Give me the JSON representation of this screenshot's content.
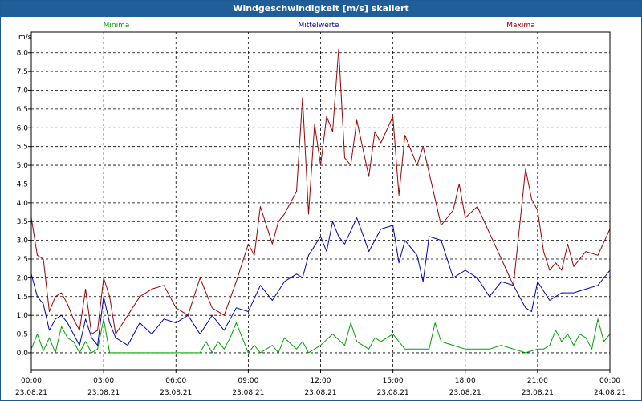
{
  "window": {
    "title": "Windgeschwindigkeit [m/s] skaliert"
  },
  "chart_data": {
    "type": "line",
    "title": "Windgeschwindigkeit [m/s] skaliert",
    "ylabel": "m/s",
    "xlabel": "",
    "ylim": [
      -0.45,
      8.55
    ],
    "y_ticks": [
      "0,0",
      "0,5",
      "1,0",
      "1,5",
      "2,0",
      "2,5",
      "3,0",
      "3,5",
      "4,0",
      "4,5",
      "5,0",
      "5,5",
      "6,0",
      "6,5",
      "7,0",
      "7,5",
      "8,0"
    ],
    "x_range_hours": [
      0,
      24
    ],
    "x_ticks": [
      {
        "time": "00:00",
        "date": "23.08.21"
      },
      {
        "time": "03:00",
        "date": "23.08.21"
      },
      {
        "time": "06:00",
        "date": "23.08.21"
      },
      {
        "time": "09:00",
        "date": "23.08.21"
      },
      {
        "time": "12:00",
        "date": "23.08.21"
      },
      {
        "time": "15:00",
        "date": "23.08.21"
      },
      {
        "time": "18:00",
        "date": "23.08.21"
      },
      {
        "time": "21:00",
        "date": "23.08.21"
      },
      {
        "time": "00:00",
        "date": "24.08.21"
      }
    ],
    "grid": true,
    "legend_position": "top",
    "series": [
      {
        "name": "Minima",
        "color": "#00a000",
        "x": [
          0,
          0.25,
          0.5,
          0.75,
          1,
          1.25,
          1.5,
          1.75,
          2,
          2.25,
          2.5,
          2.75,
          3,
          3.25,
          3.5,
          4,
          4.5,
          5,
          5.5,
          6,
          6.5,
          7,
          7.25,
          7.5,
          7.75,
          8,
          8.25,
          8.5,
          9,
          9.25,
          9.5,
          10,
          10.25,
          10.5,
          11,
          11.25,
          11.5,
          12,
          12.5,
          13,
          13.25,
          13.5,
          14,
          14.25,
          14.5,
          15,
          15.5,
          16,
          16.5,
          16.75,
          17,
          17.5,
          18,
          18.5,
          19,
          19.5,
          20,
          20.5,
          21,
          21.25,
          21.5,
          21.75,
          22,
          22.25,
          22.5,
          22.75,
          23,
          23.25,
          23.5,
          23.75,
          24
        ],
        "y": [
          0.1,
          0.5,
          0.05,
          0.4,
          0.0,
          0.7,
          0.4,
          0.3,
          0.0,
          0.3,
          0.0,
          0.1,
          0.9,
          0.0,
          0.0,
          0.0,
          0.0,
          0.0,
          0.0,
          0.0,
          0.0,
          0.0,
          0.3,
          0.0,
          0.3,
          0.1,
          0.4,
          0.8,
          0.0,
          0.2,
          0.0,
          0.2,
          0.0,
          0.4,
          0.1,
          0.3,
          0.0,
          0.2,
          0.5,
          0.2,
          0.8,
          0.3,
          0.1,
          0.4,
          0.3,
          0.5,
          0.1,
          0.1,
          0.1,
          0.8,
          0.3,
          0.2,
          0.1,
          0.1,
          0.1,
          0.2,
          0.1,
          0.0,
          0.1,
          0.1,
          0.2,
          0.6,
          0.3,
          0.5,
          0.2,
          0.5,
          0.4,
          0.1,
          0.9,
          0.3,
          0.5
        ]
      },
      {
        "name": "Mittelwerte",
        "color": "#0000c0",
        "x": [
          0,
          0.25,
          0.5,
          0.75,
          1,
          1.25,
          1.5,
          1.75,
          2,
          2.25,
          2.5,
          2.75,
          3,
          3.25,
          3.5,
          4,
          4.5,
          5,
          5.5,
          6,
          6.5,
          7,
          7.5,
          8,
          8.5,
          9,
          9.5,
          10,
          10.5,
          11,
          11.25,
          11.5,
          12,
          12.25,
          12.5,
          12.75,
          13,
          13.5,
          14,
          14.5,
          15,
          15.25,
          15.5,
          16,
          16.25,
          16.5,
          17,
          17.5,
          18,
          18.5,
          19,
          19.5,
          20,
          20.5,
          20.75,
          21,
          21.5,
          22,
          22.5,
          23,
          23.5,
          24
        ],
        "y": [
          2.1,
          1.5,
          1.3,
          0.6,
          0.9,
          1.0,
          0.8,
          0.5,
          0.2,
          0.9,
          0.4,
          0.2,
          1.5,
          0.8,
          0.4,
          0.2,
          0.8,
          0.5,
          0.9,
          0.8,
          1.0,
          0.5,
          1.0,
          0.6,
          1.2,
          1.1,
          1.8,
          1.4,
          1.9,
          2.1,
          2.0,
          2.6,
          3.1,
          2.7,
          3.5,
          3.1,
          2.9,
          3.6,
          2.7,
          3.3,
          3.4,
          2.4,
          3.0,
          2.6,
          1.9,
          3.1,
          3.0,
          2.0,
          2.2,
          2.0,
          1.5,
          1.9,
          1.8,
          1.2,
          1.1,
          1.9,
          1.4,
          1.6,
          1.6,
          1.7,
          1.8,
          2.2
        ]
      },
      {
        "name": "Maxima",
        "color": "#a00000",
        "x": [
          0,
          0.25,
          0.5,
          0.75,
          1,
          1.25,
          1.5,
          1.75,
          2,
          2.25,
          2.5,
          2.75,
          3,
          3.25,
          3.5,
          4,
          4.5,
          5,
          5.5,
          6,
          6.5,
          7,
          7.5,
          8,
          8.5,
          9,
          9.25,
          9.5,
          10,
          10.25,
          10.5,
          11,
          11.25,
          11.5,
          11.75,
          12,
          12.25,
          12.5,
          12.75,
          13,
          13.25,
          13.5,
          14,
          14.25,
          14.5,
          15,
          15.25,
          15.5,
          16,
          16.25,
          16.5,
          17,
          17.5,
          17.75,
          18,
          18.5,
          19,
          19.5,
          20,
          20.5,
          20.75,
          21,
          21.25,
          21.5,
          21.75,
          22,
          22.25,
          22.5,
          23,
          23.5,
          24
        ],
        "y": [
          3.6,
          2.6,
          2.5,
          1.1,
          1.5,
          1.6,
          1.3,
          0.9,
          0.6,
          1.7,
          0.5,
          0.6,
          2.0,
          1.5,
          0.5,
          1.0,
          1.5,
          1.7,
          1.8,
          1.2,
          1.0,
          2.0,
          1.2,
          1.0,
          1.9,
          2.9,
          2.6,
          3.9,
          2.9,
          3.5,
          3.7,
          4.3,
          6.8,
          3.7,
          6.1,
          5.0,
          6.3,
          5.9,
          8.1,
          5.2,
          5.0,
          6.2,
          4.7,
          5.9,
          5.6,
          6.3,
          4.2,
          5.8,
          5.0,
          5.5,
          4.8,
          3.4,
          3.8,
          4.5,
          3.6,
          3.9,
          3.2,
          2.5,
          1.8,
          4.9,
          4.1,
          3.8,
          2.7,
          2.2,
          2.4,
          2.2,
          2.9,
          2.3,
          2.7,
          2.6,
          3.3
        ]
      }
    ]
  }
}
